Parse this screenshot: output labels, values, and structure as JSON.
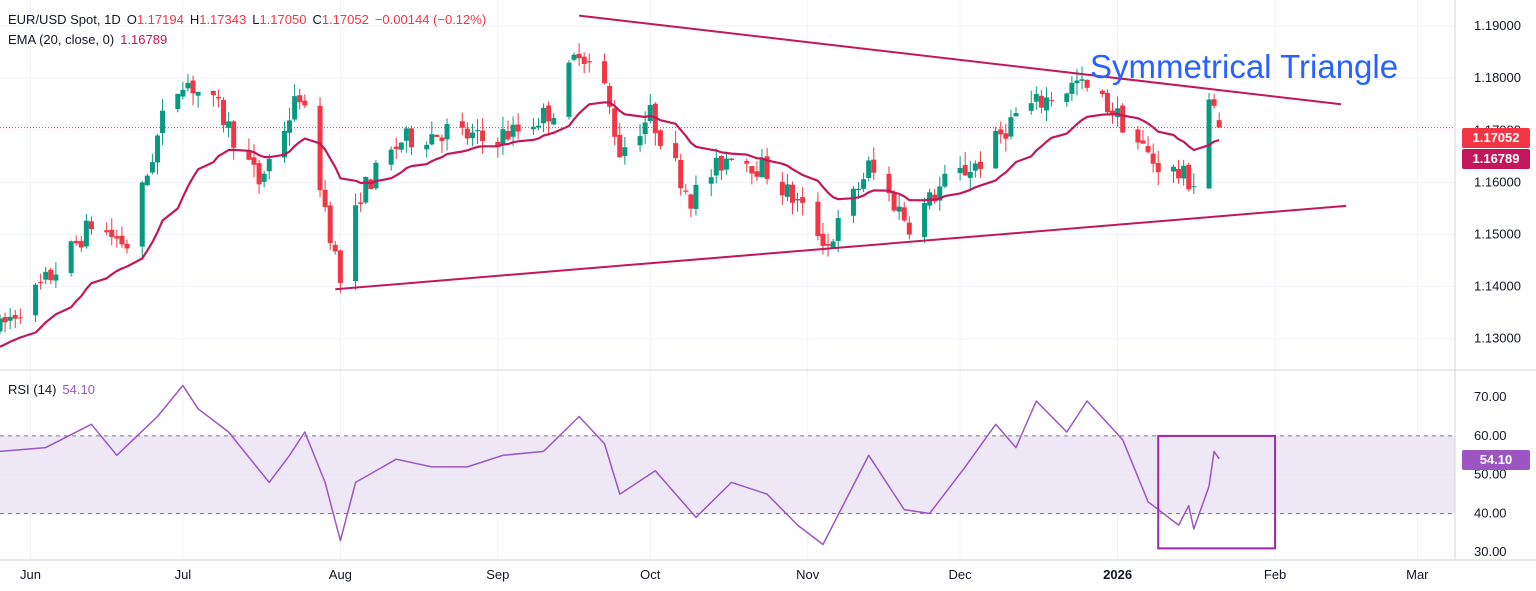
{
  "header": {
    "symbol": "EUR/USD Spot, 1D",
    "open_label": "O",
    "open": "1.17194",
    "high_label": "H",
    "high": "1.17343",
    "low_label": "L",
    "low": "1.17050",
    "close_label": "C",
    "close": "1.17052",
    "change": "−0.00144 (−0.12%)",
    "ema_label": "EMA (20, close, 0)",
    "ema_value": "1.16789",
    "rsi_label": "RSI (14)",
    "rsi_value": "54.10"
  },
  "annotation": {
    "pattern": "Symmetrical Triangle"
  },
  "price_tags": {
    "close": "1.17052",
    "ema": "1.16789",
    "rsi": "54.10"
  },
  "colors": {
    "up": "#089981",
    "down": "#f23645",
    "ema": "#c2185b",
    "trend": "#c2185b",
    "rsi": "#9c56c4",
    "rsi_band": "#ede7f6",
    "title": "#2962ff",
    "highlight_box": "#9c27b0"
  },
  "chart_data": [
    {
      "type": "candlestick",
      "title": "EUR/USD Spot, 1D",
      "x_start": "2025-05-26",
      "x_end": "2026-01-21",
      "ylim": [
        1.124,
        1.195
      ],
      "y_ticks": [
        "1.19000",
        "1.18000",
        "1.17000",
        "1.16000",
        "1.15000",
        "1.14000",
        "1.13000"
      ],
      "x_ticks": [
        {
          "label": "Jun",
          "date": "2025-06-01"
        },
        {
          "label": "Jul",
          "date": "2025-07-01"
        },
        {
          "label": "Aug",
          "date": "2025-08-01"
        },
        {
          "label": "Sep",
          "date": "2025-09-01"
        },
        {
          "label": "Oct",
          "date": "2025-10-01"
        },
        {
          "label": "Nov",
          "date": "2025-11-01"
        },
        {
          "label": "Dec",
          "date": "2025-12-01"
        },
        {
          "label": "2026",
          "date": "2026-01-01"
        },
        {
          "label": "Feb",
          "date": "2026-02-01"
        },
        {
          "label": "Mar",
          "date": "2026-03-01"
        }
      ],
      "anchors": [
        [
          "2025-05-26",
          1.132
        ],
        [
          "2025-06-05",
          1.142
        ],
        [
          "2025-06-13",
          1.152
        ],
        [
          "2025-06-20",
          1.148
        ],
        [
          "2025-06-27",
          1.172
        ],
        [
          "2025-07-01",
          1.18
        ],
        [
          "2025-07-08",
          1.174
        ],
        [
          "2025-07-16",
          1.16
        ],
        [
          "2025-07-24",
          1.177
        ],
        [
          "2025-07-28",
          1.16
        ],
        [
          "2025-08-01",
          1.141
        ],
        [
          "2025-08-05",
          1.158
        ],
        [
          "2025-08-13",
          1.168
        ],
        [
          "2025-08-22",
          1.17
        ],
        [
          "2025-08-29",
          1.168
        ],
        [
          "2025-09-05",
          1.17
        ],
        [
          "2025-09-12",
          1.174
        ],
        [
          "2025-09-17",
          1.186
        ],
        [
          "2025-09-22",
          1.178
        ],
        [
          "2025-09-25",
          1.166
        ],
        [
          "2025-10-01",
          1.173
        ],
        [
          "2025-10-09",
          1.157
        ],
        [
          "2025-10-17",
          1.166
        ],
        [
          "2025-10-24",
          1.162
        ],
        [
          "2025-10-30",
          1.156
        ],
        [
          "2025-11-05",
          1.148
        ],
        [
          "2025-11-13",
          1.163
        ],
        [
          "2025-11-21",
          1.152
        ],
        [
          "2025-11-28",
          1.16
        ],
        [
          "2025-12-05",
          1.164
        ],
        [
          "2025-12-12",
          1.173
        ],
        [
          "2025-12-24",
          1.179
        ],
        [
          "2025-12-31",
          1.174
        ],
        [
          "2026-01-08",
          1.164
        ],
        [
          "2026-01-16",
          1.16
        ],
        [
          "2026-01-19",
          1.176
        ],
        [
          "2026-01-21",
          1.1705
        ]
      ],
      "last_candle": {
        "open": 1.17194,
        "high": 1.17343,
        "low": 1.1705,
        "close": 1.17052
      },
      "ema": {
        "name": "EMA (20, close, 0)",
        "last": 1.16789
      },
      "trendlines": [
        {
          "from": [
            "2025-09-17",
            1.192
          ],
          "to": [
            "2026-02-14",
            1.175
          ]
        },
        {
          "from": [
            "2025-07-31",
            1.1395
          ],
          "to": [
            "2026-02-15",
            1.1555
          ]
        }
      ],
      "close_line": 1.17052
    },
    {
      "type": "line",
      "title": "RSI (14)",
      "ylim": [
        28,
        77
      ],
      "y_ticks": [
        "70.00",
        "60.00",
        "50.00",
        "40.00",
        "30.00"
      ],
      "bands": [
        40,
        60
      ],
      "series": [
        {
          "name": "RSI (14)",
          "points": [
            [
              "2025-05-26",
              56
            ],
            [
              "2025-06-04",
              57
            ],
            [
              "2025-06-13",
              63
            ],
            [
              "2025-06-18",
              55
            ],
            [
              "2025-06-26",
              65
            ],
            [
              "2025-07-01",
              73
            ],
            [
              "2025-07-04",
              67
            ],
            [
              "2025-07-10",
              61
            ],
            [
              "2025-07-18",
              48
            ],
            [
              "2025-07-22",
              55
            ],
            [
              "2025-07-25",
              61
            ],
            [
              "2025-07-29",
              48
            ],
            [
              "2025-08-01",
              33
            ],
            [
              "2025-08-04",
              48
            ],
            [
              "2025-08-12",
              54
            ],
            [
              "2025-08-19",
              52
            ],
            [
              "2025-08-26",
              52
            ],
            [
              "2025-09-02",
              55
            ],
            [
              "2025-09-10",
              56
            ],
            [
              "2025-09-17",
              65
            ],
            [
              "2025-09-22",
              58
            ],
            [
              "2025-09-25",
              45
            ],
            [
              "2025-10-02",
              51
            ],
            [
              "2025-10-10",
              39
            ],
            [
              "2025-10-17",
              48
            ],
            [
              "2025-10-24",
              45
            ],
            [
              "2025-10-30",
              37
            ],
            [
              "2025-11-04",
              32
            ],
            [
              "2025-11-13",
              55
            ],
            [
              "2025-11-20",
              41
            ],
            [
              "2025-11-25",
              40
            ],
            [
              "2025-12-02",
              52
            ],
            [
              "2025-12-08",
              63
            ],
            [
              "2025-12-12",
              57
            ],
            [
              "2025-12-16",
              69
            ],
            [
              "2025-12-22",
              61
            ],
            [
              "2025-12-26",
              69
            ],
            [
              "2026-01-02",
              59
            ],
            [
              "2026-01-07",
              43
            ],
            [
              "2026-01-13",
              37
            ],
            [
              "2026-01-15",
              42
            ],
            [
              "2026-01-16",
              36
            ],
            [
              "2026-01-19",
              47
            ],
            [
              "2026-01-20",
              56
            ],
            [
              "2026-01-21",
              54.1
            ]
          ]
        }
      ],
      "highlight": {
        "from": "2026-01-09",
        "to": "2026-02-01",
        "ymin": 31,
        "ymax": 60
      }
    }
  ]
}
